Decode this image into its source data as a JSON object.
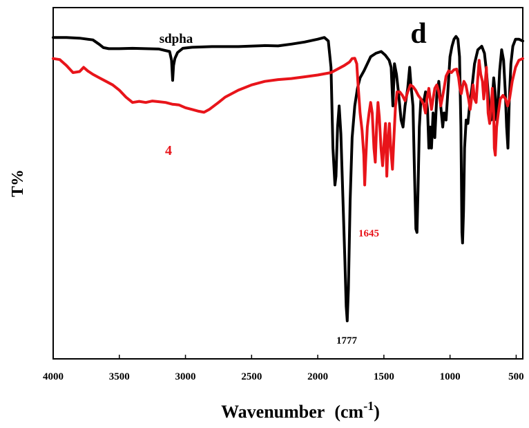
{
  "chart_data": {
    "type": "line",
    "panel_label": "d",
    "xlabel": "Wavenumber",
    "xlabel_unit_base": "(cm",
    "xlabel_unit_sup": "-1",
    "xlabel_unit_close": ")",
    "ylabel": "T%",
    "xlim": [
      4000,
      450
    ],
    "x_reversed": true,
    "y_ticks_shown": false,
    "x_ticks": [
      4000,
      3500,
      3000,
      2500,
      2000,
      1500,
      1000,
      500
    ],
    "x_tick_labels": [
      "4000",
      "3500",
      "3000",
      "2500",
      "2000",
      "1500",
      "1000",
      "500"
    ],
    "colors": {
      "sdpha": "#000000",
      "4": "#e8141a"
    },
    "series": [
      {
        "name": "sdpha",
        "label": "sdpha",
        "color": "#000000",
        "points": [
          [
            4000,
            91.5
          ],
          [
            3900,
            91.5
          ],
          [
            3800,
            91.3
          ],
          [
            3700,
            90.8
          ],
          [
            3650,
            89.5
          ],
          [
            3620,
            88.6
          ],
          [
            3580,
            88.3
          ],
          [
            3500,
            88.3
          ],
          [
            3400,
            88.4
          ],
          [
            3300,
            88.3
          ],
          [
            3200,
            88.2
          ],
          [
            3120,
            87.5
          ],
          [
            3105,
            85
          ],
          [
            3097,
            79.3
          ],
          [
            3090,
            83.5
          ],
          [
            3080,
            85.5
          ],
          [
            3060,
            87.2
          ],
          [
            3020,
            88.4
          ],
          [
            2950,
            88.7
          ],
          [
            2800,
            88.9
          ],
          [
            2600,
            88.9
          ],
          [
            2400,
            89.2
          ],
          [
            2300,
            89.1
          ],
          [
            2200,
            89.6
          ],
          [
            2100,
            90.2
          ],
          [
            2000,
            91.0
          ],
          [
            1950,
            91.5
          ],
          [
            1920,
            90.5
          ],
          [
            1900,
            83
          ],
          [
            1885,
            60
          ],
          [
            1870,
            49.5
          ],
          [
            1862,
            52
          ],
          [
            1850,
            66
          ],
          [
            1838,
            72
          ],
          [
            1825,
            64
          ],
          [
            1810,
            46
          ],
          [
            1795,
            28
          ],
          [
            1785,
            15
          ],
          [
            1777,
            10.8
          ],
          [
            1768,
            20
          ],
          [
            1755,
            45
          ],
          [
            1740,
            63
          ],
          [
            1720,
            72
          ],
          [
            1700,
            77
          ],
          [
            1680,
            80
          ],
          [
            1650,
            82
          ],
          [
            1600,
            86
          ],
          [
            1560,
            87
          ],
          [
            1520,
            87.5
          ],
          [
            1490,
            86.5
          ],
          [
            1460,
            85
          ],
          [
            1445,
            83
          ],
          [
            1432,
            72
          ],
          [
            1420,
            84
          ],
          [
            1405,
            81
          ],
          [
            1390,
            76
          ],
          [
            1370,
            68
          ],
          [
            1355,
            66
          ],
          [
            1340,
            72
          ],
          [
            1320,
            77
          ],
          [
            1305,
            83
          ],
          [
            1295,
            78
          ],
          [
            1280,
            72
          ],
          [
            1268,
            52
          ],
          [
            1258,
            37
          ],
          [
            1250,
            36
          ],
          [
            1242,
            48
          ],
          [
            1232,
            66
          ],
          [
            1220,
            74
          ],
          [
            1200,
            73
          ],
          [
            1185,
            76
          ],
          [
            1170,
            71
          ],
          [
            1160,
            60
          ],
          [
            1150,
            66
          ],
          [
            1140,
            60
          ],
          [
            1128,
            70
          ],
          [
            1115,
            63
          ],
          [
            1100,
            75
          ],
          [
            1085,
            79
          ],
          [
            1070,
            72
          ],
          [
            1055,
            66
          ],
          [
            1045,
            70
          ],
          [
            1030,
            68
          ],
          [
            1015,
            77
          ],
          [
            1000,
            86
          ],
          [
            985,
            89
          ],
          [
            970,
            91
          ],
          [
            955,
            91.8
          ],
          [
            940,
            91
          ],
          [
            928,
            86
          ],
          [
            918,
            66
          ],
          [
            910,
            36
          ],
          [
            905,
            33
          ],
          [
            898,
            42
          ],
          [
            890,
            60
          ],
          [
            878,
            68
          ],
          [
            865,
            67
          ],
          [
            850,
            73
          ],
          [
            835,
            77
          ],
          [
            815,
            84
          ],
          [
            790,
            88
          ],
          [
            760,
            89
          ],
          [
            740,
            87
          ],
          [
            725,
            82
          ],
          [
            712,
            76
          ],
          [
            700,
            70
          ],
          [
            690,
            68
          ],
          [
            680,
            74
          ],
          [
            670,
            80
          ],
          [
            660,
            76
          ],
          [
            648,
            68
          ],
          [
            638,
            72
          ],
          [
            625,
            82
          ],
          [
            610,
            88
          ],
          [
            595,
            85
          ],
          [
            582,
            76
          ],
          [
            572,
            66
          ],
          [
            562,
            60
          ],
          [
            552,
            74
          ],
          [
            540,
            84
          ],
          [
            525,
            89
          ],
          [
            505,
            91
          ],
          [
            480,
            91
          ],
          [
            450,
            90.5
          ]
        ]
      },
      {
        "name": "4",
        "label": "4",
        "color": "#e8141a",
        "points": [
          [
            4000,
            85.5
          ],
          [
            3950,
            85.2
          ],
          [
            3900,
            83.5
          ],
          [
            3850,
            81.5
          ],
          [
            3800,
            81.8
          ],
          [
            3770,
            83
          ],
          [
            3740,
            82
          ],
          [
            3700,
            81
          ],
          [
            3650,
            80
          ],
          [
            3600,
            79
          ],
          [
            3550,
            78
          ],
          [
            3500,
            76.5
          ],
          [
            3450,
            74.5
          ],
          [
            3400,
            73
          ],
          [
            3350,
            73.3
          ],
          [
            3300,
            73
          ],
          [
            3250,
            73.4
          ],
          [
            3200,
            73.2
          ],
          [
            3150,
            73
          ],
          [
            3100,
            72.5
          ],
          [
            3050,
            72.3
          ],
          [
            3000,
            71.5
          ],
          [
            2950,
            71
          ],
          [
            2900,
            70.5
          ],
          [
            2860,
            70.2
          ],
          [
            2820,
            71
          ],
          [
            2750,
            73
          ],
          [
            2700,
            74.5
          ],
          [
            2600,
            76.5
          ],
          [
            2500,
            78
          ],
          [
            2400,
            79
          ],
          [
            2300,
            79.5
          ],
          [
            2200,
            79.8
          ],
          [
            2100,
            80.3
          ],
          [
            2000,
            80.8
          ],
          [
            1900,
            81.5
          ],
          [
            1800,
            83.5
          ],
          [
            1760,
            84.5
          ],
          [
            1740,
            85.5
          ],
          [
            1720,
            85.6
          ],
          [
            1705,
            84
          ],
          [
            1695,
            78
          ],
          [
            1680,
            70
          ],
          [
            1665,
            65
          ],
          [
            1652,
            58
          ],
          [
            1645,
            49.5
          ],
          [
            1638,
            56
          ],
          [
            1625,
            66
          ],
          [
            1612,
            70
          ],
          [
            1600,
            73
          ],
          [
            1588,
            70
          ],
          [
            1575,
            60
          ],
          [
            1565,
            56
          ],
          [
            1555,
            66
          ],
          [
            1545,
            73
          ],
          [
            1535,
            69
          ],
          [
            1522,
            60
          ],
          [
            1510,
            55
          ],
          [
            1498,
            62
          ],
          [
            1488,
            67
          ],
          [
            1478,
            52
          ],
          [
            1468,
            62
          ],
          [
            1458,
            67
          ],
          [
            1448,
            60
          ],
          [
            1435,
            54
          ],
          [
            1424,
            63
          ],
          [
            1412,
            72
          ],
          [
            1400,
            76
          ],
          [
            1380,
            76
          ],
          [
            1360,
            75
          ],
          [
            1340,
            73.5
          ],
          [
            1320,
            76
          ],
          [
            1300,
            78
          ],
          [
            1280,
            77.5
          ],
          [
            1260,
            76.5
          ],
          [
            1240,
            75
          ],
          [
            1220,
            74
          ],
          [
            1200,
            72.5
          ],
          [
            1185,
            70
          ],
          [
            1175,
            74
          ],
          [
            1160,
            77
          ],
          [
            1150,
            74
          ],
          [
            1140,
            71
          ],
          [
            1128,
            74
          ],
          [
            1115,
            77
          ],
          [
            1100,
            78
          ],
          [
            1085,
            76
          ],
          [
            1070,
            72
          ],
          [
            1060,
            74
          ],
          [
            1045,
            77
          ],
          [
            1030,
            80.5
          ],
          [
            1010,
            82
          ],
          [
            990,
            81.5
          ],
          [
            970,
            82.3
          ],
          [
            950,
            82.5
          ],
          [
            935,
            80
          ],
          [
            925,
            77
          ],
          [
            915,
            75.5
          ],
          [
            905,
            77.5
          ],
          [
            895,
            79
          ],
          [
            880,
            78
          ],
          [
            860,
            74
          ],
          [
            848,
            71
          ],
          [
            838,
            74
          ],
          [
            826,
            78
          ],
          [
            815,
            74
          ],
          [
            803,
            73
          ],
          [
            792,
            79
          ],
          [
            780,
            85
          ],
          [
            768,
            81
          ],
          [
            755,
            79
          ],
          [
            745,
            74
          ],
          [
            735,
            78
          ],
          [
            725,
            83
          ],
          [
            712,
            70
          ],
          [
            700,
            67
          ],
          [
            690,
            71
          ],
          [
            680,
            77
          ],
          [
            670,
            70
          ],
          [
            665,
            60
          ],
          [
            658,
            58
          ],
          [
            648,
            66
          ],
          [
            635,
            70
          ],
          [
            620,
            74
          ],
          [
            600,
            75
          ],
          [
            580,
            74
          ],
          [
            565,
            72
          ],
          [
            550,
            74
          ],
          [
            530,
            79
          ],
          [
            505,
            83
          ],
          [
            480,
            85
          ],
          [
            450,
            85.5
          ]
        ]
      }
    ],
    "annotations": [
      {
        "text": "sdpha",
        "series": "sdpha"
      },
      {
        "text": "4",
        "series": "4"
      },
      {
        "text": "1645",
        "series": "4",
        "x": 1645
      },
      {
        "text": "1777",
        "series": "sdpha",
        "x": 1777
      }
    ]
  }
}
